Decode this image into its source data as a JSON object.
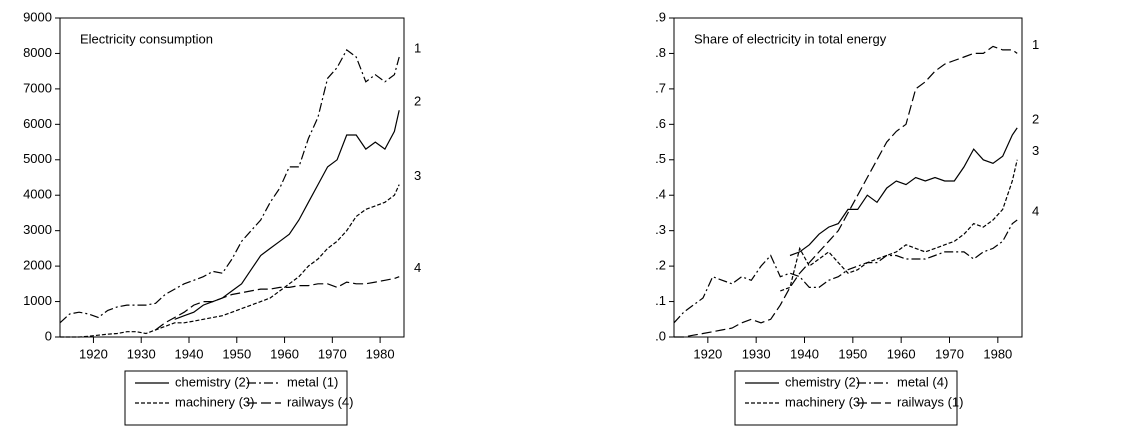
{
  "chart_data": [
    {
      "type": "line",
      "title": "Electricity consumption",
      "x": [
        1913,
        1915,
        1917,
        1919,
        1921,
        1923,
        1925,
        1927,
        1929,
        1931,
        1933,
        1935,
        1937,
        1939,
        1941,
        1943,
        1945,
        1947,
        1949,
        1951,
        1953,
        1955,
        1957,
        1959,
        1961,
        1963,
        1965,
        1967,
        1969,
        1971,
        1973,
        1975,
        1977,
        1979,
        1981,
        1983,
        1984
      ],
      "xlim": [
        1913,
        1985
      ],
      "xticks": [
        1920,
        1930,
        1940,
        1950,
        1960,
        1970,
        1980
      ],
      "ylim": [
        0,
        9000
      ],
      "yticks": [
        0,
        1000,
        2000,
        3000,
        4000,
        5000,
        6000,
        7000,
        8000,
        9000
      ],
      "series": [
        {
          "name": "chemistry (2)",
          "end_label": "2",
          "color": "#000000",
          "dash": "none",
          "values": [
            null,
            null,
            null,
            null,
            null,
            null,
            null,
            null,
            null,
            null,
            null,
            null,
            500,
            600,
            700,
            900,
            1000,
            1100,
            1300,
            1500,
            1900,
            2300,
            2500,
            2700,
            2900,
            3300,
            3800,
            4300,
            4800,
            5000,
            5700,
            5700,
            5300,
            5500,
            5300,
            5800,
            6400
          ]
        },
        {
          "name": "metal (1)",
          "end_label": "1",
          "color": "#000000",
          "dash": "9 3 2 3",
          "values": [
            400,
            650,
            700,
            650,
            550,
            750,
            850,
            900,
            900,
            900,
            950,
            1200,
            1350,
            1500,
            1600,
            1700,
            1850,
            1800,
            2200,
            2700,
            3000,
            3300,
            3800,
            4200,
            4800,
            4800,
            5600,
            6200,
            7300,
            7600,
            8100,
            7900,
            7200,
            7400,
            7200,
            7400,
            7900
          ]
        },
        {
          "name": "machinery (3)",
          "end_label": "3",
          "color": "#000000",
          "dash": "4 2",
          "values": [
            0,
            0,
            0,
            20,
            50,
            80,
            100,
            150,
            150,
            100,
            200,
            300,
            400,
            400,
            450,
            500,
            550,
            600,
            700,
            800,
            900,
            1000,
            1100,
            1300,
            1500,
            1700,
            2000,
            2200,
            2500,
            2700,
            3000,
            3400,
            3600,
            3700,
            3800,
            4000,
            4300
          ]
        },
        {
          "name": "railways (4)",
          "end_label": "4",
          "color": "#000000",
          "dash": "10 4",
          "values": [
            null,
            null,
            null,
            null,
            null,
            null,
            null,
            null,
            null,
            null,
            200,
            400,
            550,
            700,
            900,
            1000,
            1000,
            1100,
            1200,
            1250,
            1300,
            1350,
            1350,
            1400,
            1400,
            1450,
            1450,
            1500,
            1500,
            1400,
            1550,
            1500,
            1500,
            1550,
            1600,
            1650,
            1700
          ]
        }
      ]
    },
    {
      "type": "line",
      "title": "Share of electricity in total energy",
      "x": [
        1913,
        1915,
        1917,
        1919,
        1921,
        1923,
        1925,
        1927,
        1929,
        1931,
        1933,
        1935,
        1937,
        1939,
        1941,
        1943,
        1945,
        1947,
        1949,
        1951,
        1953,
        1955,
        1957,
        1959,
        1961,
        1963,
        1965,
        1967,
        1969,
        1971,
        1973,
        1975,
        1977,
        1979,
        1981,
        1983,
        1984
      ],
      "xlim": [
        1913,
        1985
      ],
      "xticks": [
        1920,
        1930,
        1940,
        1950,
        1960,
        1970,
        1980
      ],
      "ylim": [
        0,
        0.9
      ],
      "yticks": [
        {
          "value": 0,
          "label": ".0"
        },
        {
          "value": 0.1,
          "label": ".1"
        },
        {
          "value": 0.2,
          "label": ".2"
        },
        {
          "value": 0.3,
          "label": ".3"
        },
        {
          "value": 0.4,
          "label": ".4"
        },
        {
          "value": 0.5,
          "label": ".5"
        },
        {
          "value": 0.6,
          "label": ".6"
        },
        {
          "value": 0.7,
          "label": ".7"
        },
        {
          "value": 0.8,
          "label": ".8"
        },
        {
          "value": 0.9,
          "label": ".9"
        }
      ],
      "series": [
        {
          "name": "chemistry (2)",
          "end_label": "2",
          "color": "#000000",
          "dash": "none",
          "values": [
            null,
            null,
            null,
            null,
            null,
            null,
            null,
            null,
            null,
            null,
            null,
            null,
            0.23,
            0.24,
            0.26,
            0.29,
            0.31,
            0.32,
            0.36,
            0.36,
            0.4,
            0.38,
            0.42,
            0.44,
            0.43,
            0.45,
            0.44,
            0.45,
            0.44,
            0.44,
            0.48,
            0.53,
            0.5,
            0.49,
            0.51,
            0.57,
            0.59
          ]
        },
        {
          "name": "metal (4)",
          "end_label": "4",
          "color": "#000000",
          "dash": "9 3 2 3",
          "values": [
            0.04,
            0.07,
            0.09,
            0.11,
            0.17,
            0.16,
            0.15,
            0.17,
            0.16,
            0.2,
            0.23,
            0.17,
            0.18,
            0.17,
            0.14,
            0.14,
            0.16,
            0.17,
            0.19,
            0.2,
            0.21,
            0.21,
            0.23,
            0.23,
            0.22,
            0.22,
            0.22,
            0.23,
            0.24,
            0.24,
            0.24,
            0.22,
            0.24,
            0.25,
            0.27,
            0.32,
            0.33
          ]
        },
        {
          "name": "machinery (3)",
          "end_label": "3",
          "color": "#000000",
          "dash": "4 2",
          "values": [
            null,
            null,
            null,
            null,
            null,
            null,
            null,
            null,
            null,
            null,
            null,
            0.13,
            0.14,
            0.25,
            0.2,
            0.22,
            0.24,
            0.21,
            0.18,
            0.19,
            0.21,
            0.22,
            0.23,
            0.24,
            0.26,
            0.25,
            0.24,
            0.25,
            0.26,
            0.27,
            0.29,
            0.32,
            0.31,
            0.33,
            0.36,
            0.44,
            0.5
          ]
        },
        {
          "name": "railways (1)",
          "end_label": "1",
          "color": "#000000",
          "dash": "10 4",
          "values": [
            0,
            0,
            0.005,
            0.01,
            0.015,
            0.02,
            0.025,
            0.04,
            0.05,
            0.04,
            0.05,
            0.09,
            0.14,
            0.18,
            0.21,
            0.24,
            0.27,
            0.3,
            0.35,
            0.4,
            0.45,
            0.5,
            0.55,
            0.58,
            0.6,
            0.7,
            0.72,
            0.75,
            0.77,
            0.78,
            0.79,
            0.8,
            0.8,
            0.82,
            0.81,
            0.81,
            0.8
          ]
        }
      ]
    }
  ]
}
